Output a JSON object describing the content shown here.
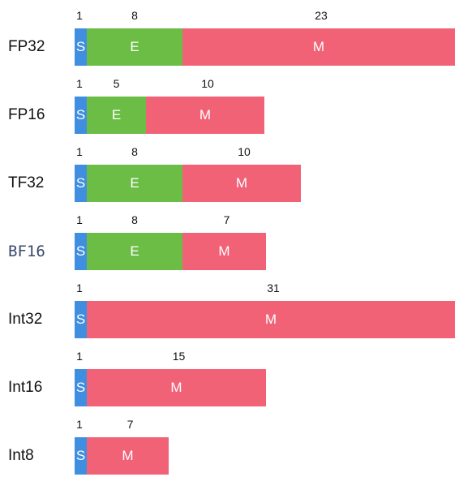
{
  "colors": {
    "sign": "#3f8ee0",
    "exponent": "#6cbd45",
    "mantissa": "#f16277"
  },
  "formats": [
    {
      "name": "FP32",
      "mono": false,
      "segments": [
        {
          "type": "sign",
          "letter": "S",
          "bits": "1"
        },
        {
          "type": "exponent",
          "letter": "E",
          "bits": "8"
        },
        {
          "type": "mantissa",
          "letter": "M",
          "bits": "23"
        }
      ]
    },
    {
      "name": "FP16",
      "mono": false,
      "segments": [
        {
          "type": "sign",
          "letter": "S",
          "bits": "1"
        },
        {
          "type": "exponent",
          "letter": "E",
          "bits": "5"
        },
        {
          "type": "mantissa",
          "letter": "M",
          "bits": "10"
        }
      ]
    },
    {
      "name": "TF32",
      "mono": false,
      "segments": [
        {
          "type": "sign",
          "letter": "S",
          "bits": "1"
        },
        {
          "type": "exponent",
          "letter": "E",
          "bits": "8"
        },
        {
          "type": "mantissa",
          "letter": "M",
          "bits": "10"
        }
      ]
    },
    {
      "name": "BF16",
      "mono": true,
      "segments": [
        {
          "type": "sign",
          "letter": "S",
          "bits": "1"
        },
        {
          "type": "exponent",
          "letter": "E",
          "bits": "8"
        },
        {
          "type": "mantissa",
          "letter": "M",
          "bits": "7"
        }
      ]
    },
    {
      "name": "Int32",
      "mono": false,
      "segments": [
        {
          "type": "sign",
          "letter": "S",
          "bits": "1"
        },
        {
          "type": "mantissa",
          "letter": "M",
          "bits": "31"
        }
      ]
    },
    {
      "name": "Int16",
      "mono": false,
      "segments": [
        {
          "type": "sign",
          "letter": "S",
          "bits": "1"
        },
        {
          "type": "mantissa",
          "letter": "M",
          "bits": "15"
        }
      ]
    },
    {
      "name": "Int8",
      "mono": false,
      "segments": [
        {
          "type": "sign",
          "letter": "S",
          "bits": "1"
        },
        {
          "type": "mantissa",
          "letter": "M",
          "bits": "7"
        }
      ]
    }
  ]
}
